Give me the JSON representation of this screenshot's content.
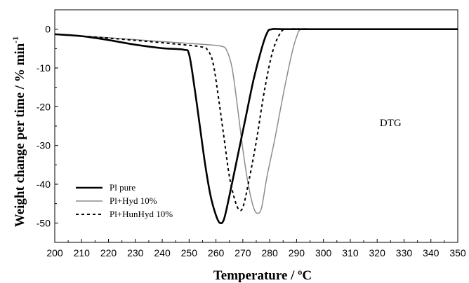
{
  "chart_data": {
    "type": "line",
    "xlabel": "Temperature / ºC",
    "ylabel_main": "Weight change per time / % min",
    "ylabel_sup": "-1",
    "xlim": [
      200,
      350
    ],
    "ylim": [
      -55,
      5
    ],
    "x_ticks": [
      200,
      210,
      220,
      230,
      240,
      250,
      260,
      270,
      280,
      290,
      300,
      310,
      320,
      330,
      340,
      350
    ],
    "y_ticks": [
      0,
      -10,
      -20,
      -30,
      -40,
      -50
    ],
    "grid": false,
    "legend_position": "bottom-left",
    "annotation": "DTG",
    "annotation_pos": {
      "x": 325,
      "y": -25
    },
    "series": [
      {
        "name": "Pl pure",
        "color": "#000000",
        "style": "solid-thick",
        "points": [
          [
            200,
            -1.3
          ],
          [
            210,
            -1.8
          ],
          [
            220,
            -2.8
          ],
          [
            230,
            -4.0
          ],
          [
            240,
            -4.9
          ],
          [
            248,
            -5.3
          ],
          [
            250,
            -6.5
          ],
          [
            252,
            -15
          ],
          [
            254,
            -25
          ],
          [
            256,
            -35
          ],
          [
            258,
            -43
          ],
          [
            260,
            -48
          ],
          [
            261.5,
            -50
          ],
          [
            263,
            -49
          ],
          [
            265,
            -43
          ],
          [
            268,
            -33
          ],
          [
            271,
            -23
          ],
          [
            274,
            -13
          ],
          [
            277,
            -5
          ],
          [
            279,
            -1
          ],
          [
            281,
            0
          ],
          [
            290,
            0
          ],
          [
            350,
            0
          ]
        ]
      },
      {
        "name": "Pl+Hyd 10%",
        "color": "#8c8c8c",
        "style": "solid-thin",
        "points": [
          [
            200,
            -1.3
          ],
          [
            220,
            -2.2
          ],
          [
            240,
            -3.2
          ],
          [
            255,
            -3.9
          ],
          [
            262,
            -4.4
          ],
          [
            264,
            -5.5
          ],
          [
            266,
            -10
          ],
          [
            268,
            -20
          ],
          [
            270,
            -31
          ],
          [
            272,
            -40
          ],
          [
            274,
            -46
          ],
          [
            275.5,
            -47.5
          ],
          [
            277,
            -46
          ],
          [
            279,
            -38
          ],
          [
            282,
            -28
          ],
          [
            285,
            -17
          ],
          [
            288,
            -7
          ],
          [
            290,
            -2
          ],
          [
            292,
            0
          ],
          [
            300,
            0
          ],
          [
            350,
            0
          ]
        ]
      },
      {
        "name": "Pl+HunHyd 10%",
        "color": "#000000",
        "style": "dashed",
        "points": [
          [
            200,
            -1.3
          ],
          [
            220,
            -2.3
          ],
          [
            240,
            -3.5
          ],
          [
            254,
            -4.5
          ],
          [
            257,
            -5.5
          ],
          [
            259,
            -9
          ],
          [
            261,
            -18
          ],
          [
            263,
            -28
          ],
          [
            265,
            -38
          ],
          [
            267,
            -44
          ],
          [
            268.5,
            -46.5
          ],
          [
            270,
            -46
          ],
          [
            272,
            -40
          ],
          [
            275,
            -29
          ],
          [
            278,
            -16
          ],
          [
            281,
            -6
          ],
          [
            284,
            -1
          ],
          [
            287,
            0
          ],
          [
            300,
            0
          ],
          [
            350,
            0
          ]
        ]
      }
    ]
  }
}
